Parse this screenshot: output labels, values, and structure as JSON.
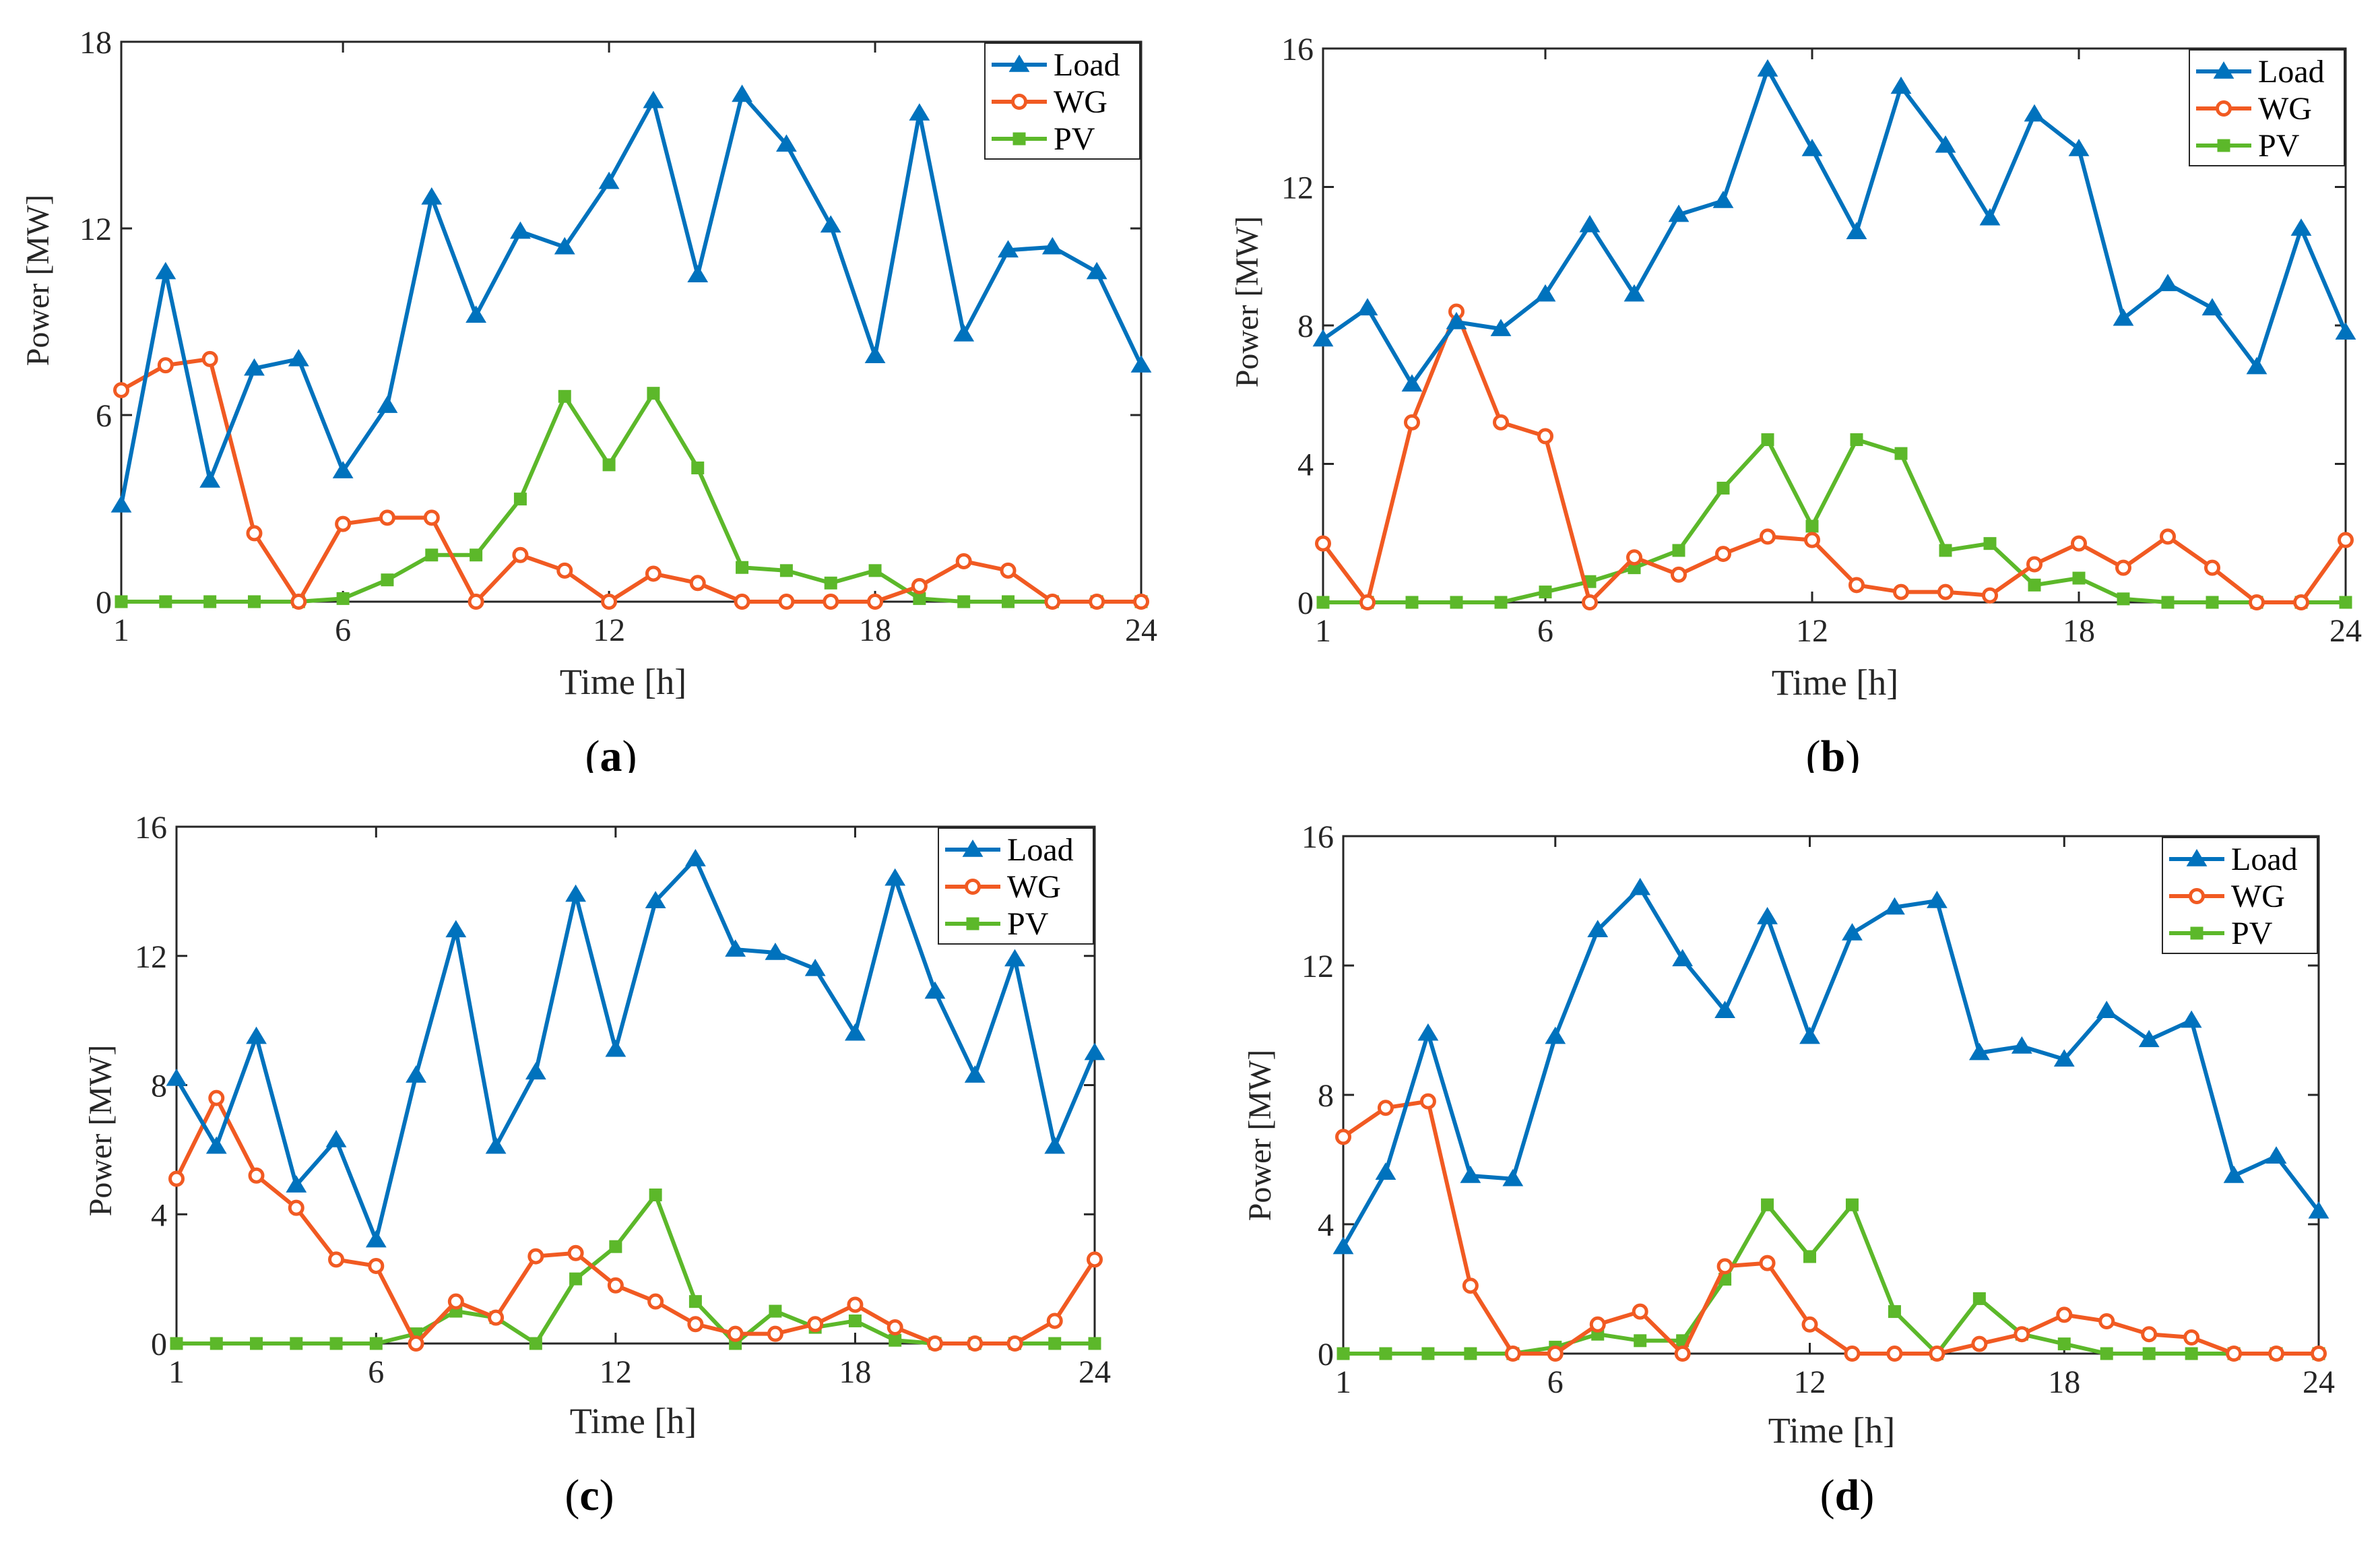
{
  "style": {
    "colors": {
      "Load": "#0072BD",
      "WG": "#F15A22",
      "PV": "#5CB82A",
      "axis": "#262626"
    },
    "markers": {
      "Load": "triangle",
      "WG": "circle",
      "PV": "square"
    },
    "legend_position": "top-right"
  },
  "chart_data": [
    {
      "type": "line",
      "caption": "(a)",
      "caption_letter": "a",
      "xlabel": "Time [h]",
      "ylabel": "Power [MW]",
      "xlim": [
        1,
        24
      ],
      "ylim": [
        0,
        18
      ],
      "xticks": [
        1,
        6,
        12,
        18,
        24
      ],
      "yticks": [
        0,
        6,
        12,
        18
      ],
      "legend": [
        "Load",
        "WG",
        "PV"
      ],
      "x": [
        1,
        2,
        3,
        4,
        5,
        6,
        7,
        8,
        9,
        10,
        11,
        12,
        13,
        14,
        15,
        16,
        17,
        18,
        19,
        20,
        21,
        22,
        23,
        24
      ],
      "series": [
        {
          "name": "Load",
          "values": [
            3.1,
            10.6,
            3.9,
            7.5,
            7.8,
            4.2,
            6.3,
            13.0,
            9.2,
            11.9,
            11.4,
            13.5,
            16.1,
            10.5,
            16.3,
            14.7,
            12.1,
            7.9,
            15.7,
            8.6,
            11.3,
            11.4,
            10.6,
            7.6
          ]
        },
        {
          "name": "WG",
          "values": [
            6.8,
            7.6,
            7.8,
            2.2,
            0.0,
            2.5,
            2.7,
            2.7,
            0.0,
            1.5,
            1.0,
            0.0,
            0.9,
            0.6,
            0.0,
            0.0,
            0.0,
            0.0,
            0.5,
            1.3,
            1.0,
            0.0,
            0.0,
            0.0
          ]
        },
        {
          "name": "PV",
          "values": [
            0.0,
            0.0,
            0.0,
            0.0,
            0.0,
            0.1,
            0.7,
            1.5,
            1.5,
            3.3,
            6.6,
            4.4,
            6.7,
            4.3,
            1.1,
            1.0,
            0.6,
            1.0,
            0.1,
            0.0,
            0.0,
            0.0,
            0.0,
            0.0
          ]
        }
      ]
    },
    {
      "type": "line",
      "caption": "(b)",
      "caption_letter": "b",
      "xlabel": "Time [h]",
      "ylabel": "Power [MW]",
      "xlim": [
        1,
        24
      ],
      "ylim": [
        0,
        16
      ],
      "xticks": [
        1,
        6,
        12,
        18,
        24
      ],
      "yticks": [
        0,
        4,
        8,
        12,
        16
      ],
      "legend": [
        "Load",
        "WG",
        "PV"
      ],
      "x": [
        1,
        2,
        3,
        4,
        5,
        6,
        7,
        8,
        9,
        10,
        11,
        12,
        13,
        14,
        15,
        16,
        17,
        18,
        19,
        20,
        21,
        22,
        23,
        24
      ],
      "series": [
        {
          "name": "Load",
          "values": [
            7.6,
            8.5,
            6.3,
            8.1,
            7.9,
            8.9,
            10.9,
            8.9,
            11.2,
            11.6,
            15.4,
            13.1,
            10.7,
            14.9,
            13.2,
            11.1,
            14.1,
            13.1,
            8.2,
            9.2,
            8.5,
            6.8,
            10.8,
            7.8
          ]
        },
        {
          "name": "WG",
          "values": [
            1.7,
            0.0,
            5.2,
            8.4,
            5.2,
            4.8,
            0.0,
            1.3,
            0.8,
            1.4,
            1.9,
            1.8,
            0.5,
            0.3,
            0.3,
            0.2,
            1.1,
            1.7,
            1.0,
            1.9,
            1.0,
            0.0,
            0.0,
            1.8
          ]
        },
        {
          "name": "PV",
          "values": [
            0.0,
            0.0,
            0.0,
            0.0,
            0.0,
            0.3,
            0.6,
            1.0,
            1.5,
            3.3,
            4.7,
            2.2,
            4.7,
            4.3,
            1.5,
            1.7,
            0.5,
            0.7,
            0.1,
            0.0,
            0.0,
            0.0,
            0.0,
            0.0
          ]
        }
      ]
    },
    {
      "type": "line",
      "caption": "(c)",
      "caption_letter": "c",
      "xlabel": "Time [h]",
      "ylabel": "Power [MW]",
      "xlim": [
        1,
        24
      ],
      "ylim": [
        0,
        16
      ],
      "xticks": [
        1,
        6,
        12,
        18,
        24
      ],
      "yticks": [
        0,
        4,
        8,
        12,
        16
      ],
      "legend": [
        "Load",
        "WG",
        "PV"
      ],
      "x": [
        1,
        2,
        3,
        4,
        5,
        6,
        7,
        8,
        9,
        10,
        11,
        12,
        13,
        14,
        15,
        16,
        17,
        18,
        19,
        20,
        21,
        22,
        23,
        24
      ],
      "series": [
        {
          "name": "Load",
          "values": [
            8.2,
            6.1,
            9.5,
            4.9,
            6.3,
            3.2,
            8.3,
            12.8,
            6.1,
            8.4,
            13.9,
            9.1,
            13.7,
            15.0,
            12.2,
            12.1,
            11.6,
            9.6,
            14.4,
            10.9,
            8.3,
            11.9,
            6.1,
            9.0
          ]
        },
        {
          "name": "WG",
          "values": [
            5.1,
            7.6,
            5.2,
            4.2,
            2.6,
            2.4,
            0.0,
            1.3,
            0.8,
            2.7,
            2.8,
            1.8,
            1.3,
            0.6,
            0.3,
            0.3,
            0.6,
            1.2,
            0.5,
            0.0,
            0.0,
            0.0,
            0.7,
            2.6
          ]
        },
        {
          "name": "PV",
          "values": [
            0.0,
            0.0,
            0.0,
            0.0,
            0.0,
            0.0,
            0.3,
            1.0,
            0.8,
            0.0,
            2.0,
            3.0,
            4.6,
            1.3,
            0.0,
            1.0,
            0.5,
            0.7,
            0.1,
            0.0,
            0.0,
            0.0,
            0.0,
            0.0
          ]
        }
      ]
    },
    {
      "type": "line",
      "caption": "(d)",
      "caption_letter": "d",
      "xlabel": "Time [h]",
      "ylabel": "Power [MW]",
      "xlim": [
        1,
        24
      ],
      "ylim": [
        0,
        16
      ],
      "xticks": [
        1,
        6,
        12,
        18,
        24
      ],
      "yticks": [
        0,
        4,
        8,
        12,
        16
      ],
      "legend": [
        "Load",
        "WG",
        "PV"
      ],
      "x": [
        1,
        2,
        3,
        4,
        5,
        6,
        7,
        8,
        9,
        10,
        11,
        12,
        13,
        14,
        15,
        16,
        17,
        18,
        19,
        20,
        21,
        22,
        23,
        24
      ],
      "series": [
        {
          "name": "Load",
          "values": [
            3.3,
            5.6,
            9.9,
            5.5,
            5.4,
            9.8,
            13.1,
            14.4,
            12.2,
            10.6,
            13.5,
            9.8,
            13.0,
            13.8,
            14.0,
            9.3,
            9.5,
            9.1,
            10.6,
            9.7,
            10.3,
            5.5,
            6.1,
            4.4
          ]
        },
        {
          "name": "WG",
          "values": [
            6.7,
            7.6,
            7.8,
            2.1,
            0.0,
            0.0,
            0.9,
            1.3,
            0.0,
            2.7,
            2.8,
            0.9,
            0.0,
            0.0,
            0.0,
            0.3,
            0.6,
            1.2,
            1.0,
            0.6,
            0.5,
            0.0,
            0.0,
            0.0
          ]
        },
        {
          "name": "PV",
          "values": [
            0.0,
            0.0,
            0.0,
            0.0,
            0.0,
            0.2,
            0.6,
            0.4,
            0.4,
            2.3,
            4.6,
            3.0,
            4.6,
            1.3,
            0.0,
            1.7,
            0.6,
            0.3,
            0.0,
            0.0,
            0.0,
            0.0,
            0.0,
            0.0
          ]
        }
      ]
    }
  ]
}
